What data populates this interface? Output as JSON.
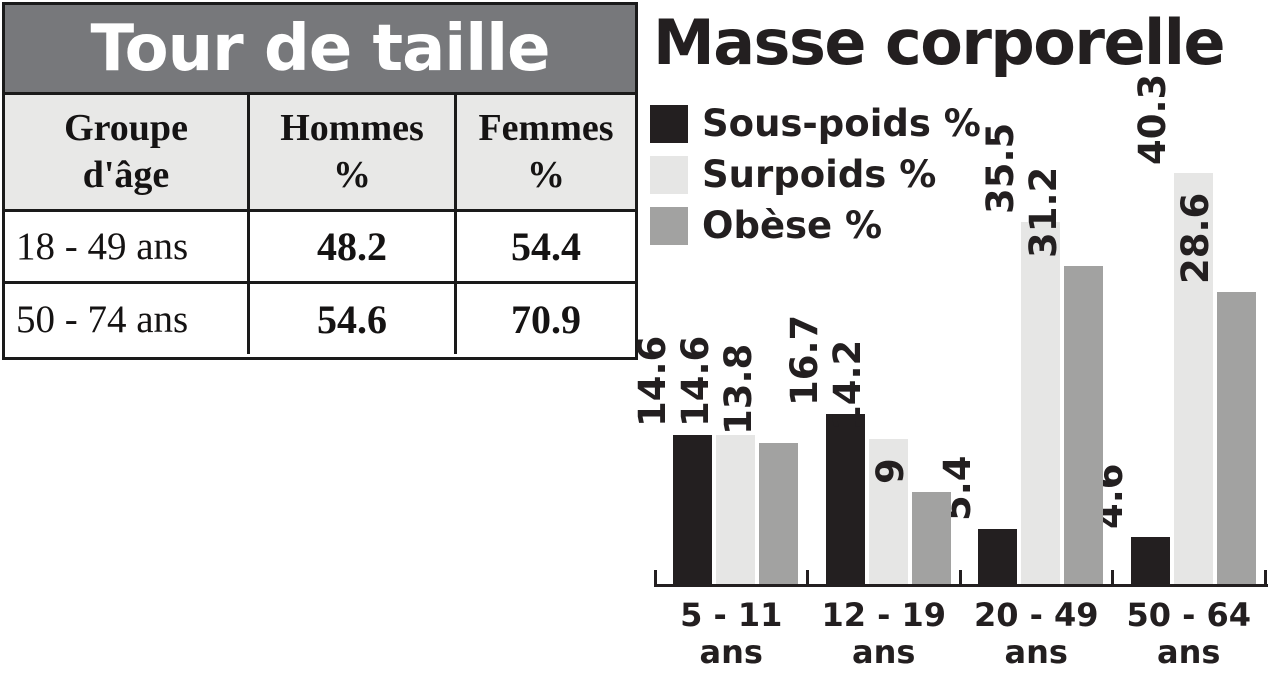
{
  "colors": {
    "ink": "#231f20",
    "table_border": "#1a1a1a",
    "table_title_bg": "#77787b",
    "table_header_bg": "#e8e8e7",
    "bar_sous_poids": "#231f20",
    "bar_surpoids": "#e6e6e5",
    "bar_obese": "#a2a2a1"
  },
  "table": {
    "title": "Tour de taille",
    "columns": [
      {
        "line1": "Groupe",
        "line2": "d'âge"
      },
      {
        "line1": "Hommes",
        "line2": "%"
      },
      {
        "line1": "Femmes",
        "line2": "%"
      }
    ],
    "rows": [
      {
        "age": "18 - 49 ans",
        "hommes": "48.2",
        "femmes": "54.4"
      },
      {
        "age": "50 - 74 ans",
        "hommes": "54.6",
        "femmes": "70.9"
      }
    ]
  },
  "chart_data": {
    "type": "bar",
    "title": "Masse corporelle",
    "categories": [
      "5 - 11 ans",
      "12 - 19 ans",
      "20 - 49 ans",
      "50 - 64 ans"
    ],
    "category_lines": [
      [
        "5 - 11",
        "ans"
      ],
      [
        "12 - 19",
        "ans"
      ],
      [
        "20 - 49",
        "ans"
      ],
      [
        "50 - 64",
        "ans"
      ]
    ],
    "series": [
      {
        "name": "Sous-poids %",
        "color": "#231f20",
        "values": [
          14.6,
          16.7,
          5.4,
          4.6
        ]
      },
      {
        "name": "Surpoids %",
        "color": "#e6e6e5",
        "values": [
          14.6,
          14.2,
          35.5,
          40.3
        ]
      },
      {
        "name": "Obèse %",
        "color": "#a2a2a1",
        "values": [
          13.8,
          9,
          31.2,
          28.6
        ]
      }
    ],
    "value_labels": [
      [
        "14.6",
        "14.6",
        "13.8"
      ],
      [
        "16.7",
        "14.2",
        "9"
      ],
      [
        "5.4",
        "35.5",
        "31.2"
      ],
      [
        "4.6",
        "40.3",
        "28.6"
      ]
    ],
    "ylim": [
      0,
      41
    ],
    "xlabel": "",
    "ylabel": "",
    "grid": false,
    "legend_position": "top-left",
    "value_label_style": "rotated-90-bold"
  }
}
